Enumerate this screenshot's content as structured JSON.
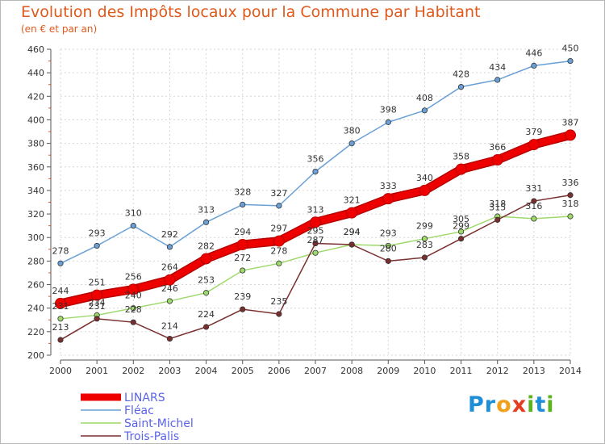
{
  "header": {
    "title": "Evolution des Impôts locaux pour la Commune par Habitant",
    "subtitle": "(en € et par an)"
  },
  "logo": {
    "text": "Proxiti",
    "letters": [
      {
        "ch": "P",
        "color": "#1e8fd6"
      },
      {
        "ch": "r",
        "color": "#1e8fd6"
      },
      {
        "ch": "o",
        "color": "#f2a11c"
      },
      {
        "ch": "x",
        "color": "#e53b1f"
      },
      {
        "ch": "i",
        "color": "#5db31d"
      },
      {
        "ch": "t",
        "color": "#1e8fd6"
      },
      {
        "ch": "i",
        "color": "#5db31d"
      }
    ]
  },
  "chart_data": {
    "type": "line",
    "title": "Evolution des Impôts locaux pour la Commune par Habitant",
    "subtitle": "(en € et par an)",
    "xlabel": "",
    "ylabel": "",
    "x": [
      "2000",
      "2001",
      "2002",
      "2003",
      "2004",
      "2005",
      "2006",
      "2007",
      "2008",
      "2009",
      "2010",
      "2011",
      "2012",
      "2013",
      "2014"
    ],
    "ylim": [
      200,
      460
    ],
    "yticks": [
      200,
      220,
      240,
      260,
      280,
      300,
      320,
      340,
      360,
      380,
      400,
      420,
      440,
      460
    ],
    "grid": true,
    "legend_position": "bottom-left",
    "series": [
      {
        "name": "LINARS",
        "color": "#ee0000",
        "values": [
          244,
          251,
          256,
          264,
          282,
          294,
          297,
          313,
          321,
          333,
          340,
          358,
          366,
          379,
          387
        ]
      },
      {
        "name": "Fléac",
        "color": "#6aa0d6",
        "values": [
          278,
          293,
          310,
          292,
          313,
          328,
          327,
          356,
          380,
          398,
          408,
          428,
          434,
          446,
          450
        ]
      },
      {
        "name": "Saint-Michel",
        "color": "#9ed96b",
        "values": [
          231,
          234,
          240,
          246,
          253,
          272,
          278,
          287,
          294,
          293,
          299,
          305,
          318,
          316,
          318
        ]
      },
      {
        "name": "Trois-Palis",
        "color": "#7a2e2e",
        "values": [
          213,
          231,
          228,
          214,
          224,
          239,
          235,
          295,
          294,
          280,
          283,
          299,
          315,
          331,
          336
        ]
      }
    ]
  }
}
